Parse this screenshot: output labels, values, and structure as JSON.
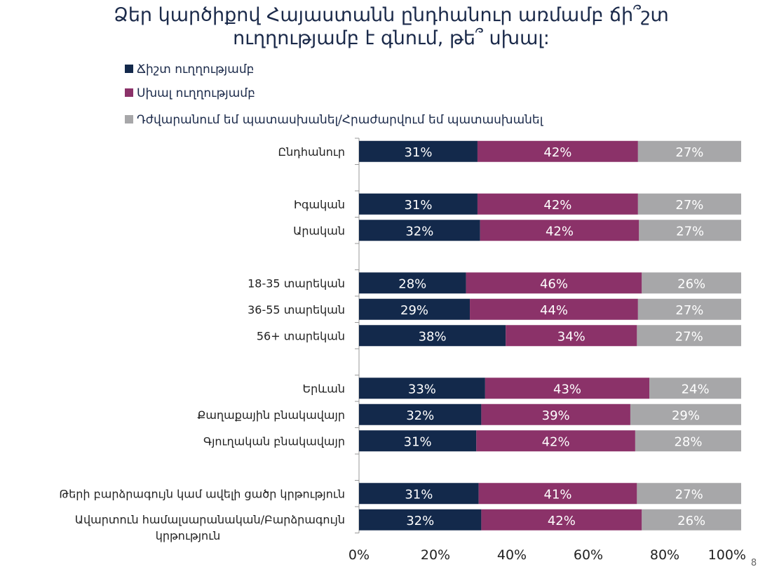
{
  "page_number": "8",
  "chart_data": {
    "type": "bar",
    "orientation": "horizontal-stacked-100",
    "title": [
      "Ձեր կարծիքով Հայաստանն ընդհանուր առմամբ  ճի՞շտ",
      "ուղղությամբ է գնում, թե՞ սխալ:"
    ],
    "legend_position": "top-left",
    "series": [
      {
        "name": "Ճիշտ ուղղությամբ",
        "color": "#13294b",
        "values": [
          31,
          31,
          32,
          28,
          29,
          38,
          33,
          32,
          31,
          31,
          32
        ]
      },
      {
        "name": "Սխալ ուղղությամբ",
        "color": "#8b3269",
        "values": [
          42,
          42,
          42,
          46,
          44,
          34,
          43,
          39,
          42,
          41,
          42
        ]
      },
      {
        "name": "Դժվարանում եմ պատասխանել/Հրաժարվում եմ պատասխանել",
        "color": "#a7a7a9",
        "values": [
          27,
          27,
          27,
          26,
          27,
          27,
          24,
          29,
          28,
          27,
          26
        ]
      }
    ],
    "categories": [
      "Ընդհանուր",
      "Իգական",
      "Արական",
      "18-35 տարեկան",
      "36-55 տարեկան",
      "56+ տարեկան",
      "Երևան",
      "Քաղաքային բնակավայր",
      "Գյուղական բնակավայր",
      "Թերի բարձրագույն կամ ավելի ցածր կրթություն",
      "Ավարտուն համալսարանական/Բարձրագույն կրթություն"
    ],
    "category_label_lines": [
      [
        "Ընդհանուր"
      ],
      [
        "Իգական"
      ],
      [
        "Արական"
      ],
      [
        "18-35 տարեկան"
      ],
      [
        "36-55 տարեկան"
      ],
      [
        "56+ տարեկան"
      ],
      [
        "Երևան"
      ],
      [
        "Քաղաքային բնակավայր"
      ],
      [
        "Գյուղական բնակավայր"
      ],
      [
        "Թերի բարձրագույն կամ ավելի ցածր կրթություն"
      ],
      [
        "Ավարտուն համալսարանական/Բարձրագույն",
        "կրթություն"
      ]
    ],
    "groups": [
      [
        0
      ],
      [
        1,
        2
      ],
      [
        3,
        4,
        5
      ],
      [
        6,
        7,
        8
      ],
      [
        9,
        10
      ]
    ],
    "xlim": [
      0,
      100
    ],
    "xticks": [
      "0%",
      "20%",
      "40%",
      "60%",
      "80%",
      "100%"
    ],
    "xlabel": "",
    "ylabel": "",
    "grid": false
  }
}
